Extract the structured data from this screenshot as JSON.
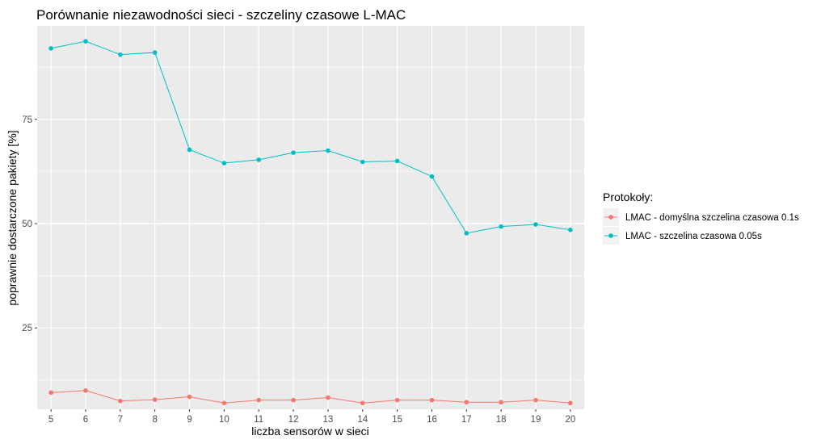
{
  "chart_data": {
    "type": "line",
    "title": "Porównanie niezawodności sieci - szczeliny czasowe L-MAC",
    "xlabel": "liczba sensorów w sieci",
    "ylabel": "poprawnie dostarczone pakiety [%]",
    "x": [
      5,
      6,
      7,
      8,
      9,
      10,
      11,
      12,
      13,
      14,
      15,
      16,
      17,
      18,
      19,
      20
    ],
    "x_ticks": [
      "5",
      "6",
      "7",
      "8",
      "9",
      "10",
      "11",
      "12",
      "13",
      "14",
      "15",
      "16",
      "17",
      "18",
      "19",
      "20"
    ],
    "y_ticks": [
      "25",
      "50",
      "75"
    ],
    "xlim": [
      4.6,
      20.4
    ],
    "ylim": [
      5.5,
      97.4
    ],
    "grid": true,
    "legend": {
      "title": "Protokoły:",
      "placement": "right"
    },
    "series": [
      {
        "name": "LMAC - domyślna szczelina czasowa 0.1s",
        "color": "#F8766D",
        "values": [
          9.5,
          10,
          7.5,
          7.8,
          8.5,
          7,
          7.7,
          7.7,
          8.3,
          7,
          7.7,
          7.7,
          7.2,
          7.2,
          7.7,
          7
        ]
      },
      {
        "name": "LMAC - szczelina czasowa 0.05s",
        "color": "#00BFC4",
        "values": [
          92,
          93.7,
          90.5,
          91,
          67.7,
          64.5,
          65.3,
          67,
          67.5,
          64.8,
          65,
          61.3,
          47.7,
          49.3,
          49.8,
          48.5
        ]
      }
    ]
  }
}
